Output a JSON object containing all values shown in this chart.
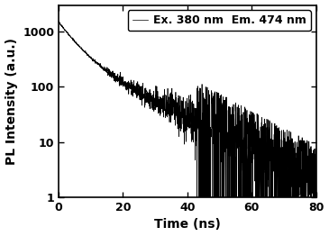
{
  "title": "",
  "xlabel": "Time (ns)",
  "ylabel": "PL Intensity (a.u.)",
  "legend_label": "Ex. 380 nm  Em. 474 nm",
  "xlim": [
    0,
    80
  ],
  "ylim": [
    1,
    3000
  ],
  "yticks": [
    1,
    10,
    100,
    1000
  ],
  "xticks": [
    0,
    20,
    40,
    60,
    80
  ],
  "line_color": "#000000",
  "background_color": "#ffffff",
  "decay_amplitude": 1500,
  "decay_tau1": 4.5,
  "decay_tau2": 14.0,
  "noise_seed": 42,
  "smooth_end": 10,
  "noise_transition": 28,
  "heavy_noise_start": 43,
  "n_points": 2000
}
